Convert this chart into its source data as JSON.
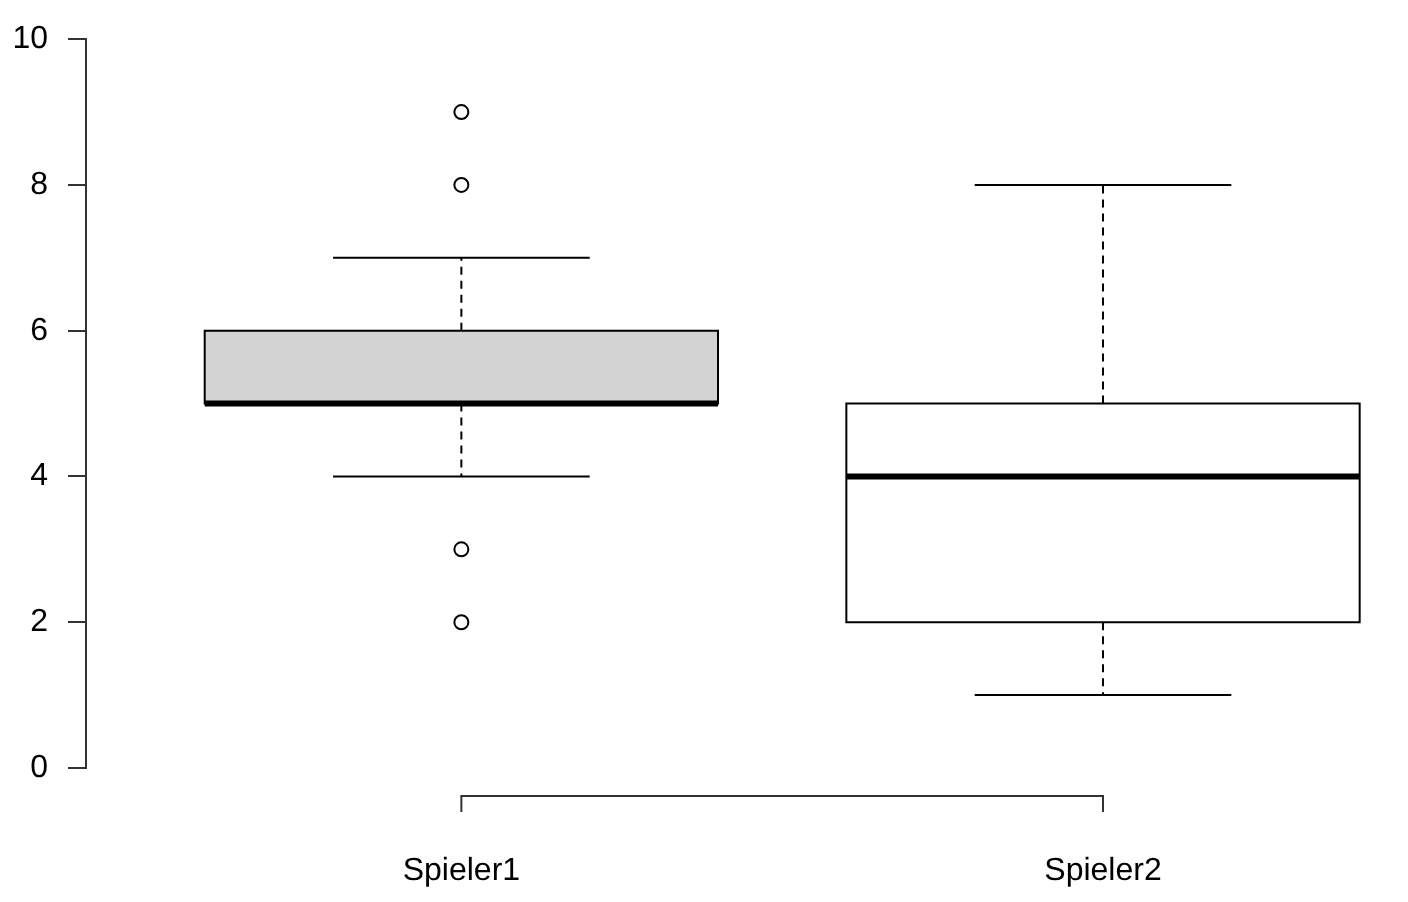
{
  "chart_data": {
    "type": "box",
    "categories": [
      "Spieler1",
      "Spieler2"
    ],
    "boxes": [
      {
        "low": 4,
        "q1": 5,
        "median": 5,
        "q3": 6,
        "high": 7,
        "outliers": [
          2,
          3,
          8,
          9
        ]
      },
      {
        "low": 1,
        "q1": 2,
        "median": 4,
        "q3": 5,
        "high": 8
      }
    ],
    "colors": [
      "#d3d3d3",
      "#ffffff"
    ],
    "ylim": [
      0,
      10
    ],
    "yticks": [
      0,
      2,
      4,
      6,
      8,
      10
    ]
  }
}
